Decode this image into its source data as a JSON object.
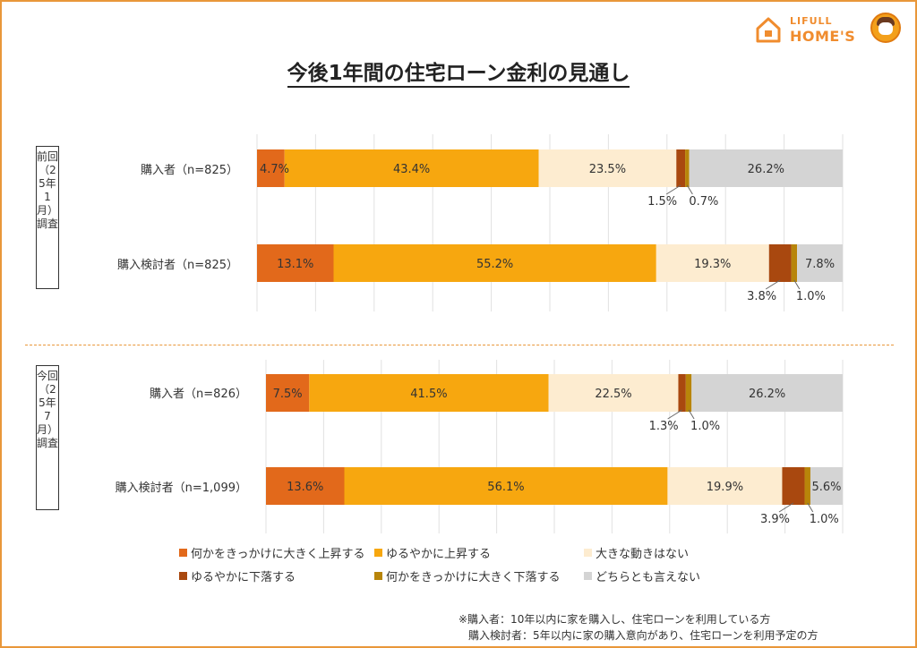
{
  "logo": {
    "line1": "LIFULL",
    "line2": "HOME'S"
  },
  "title": "今後1年間の住宅ローン金利の見通し",
  "surveys": {
    "previous": "前回（25年1月）調査",
    "current": "今回（25年7月）調査"
  },
  "colors": {
    "big_rise": "#e2691b",
    "slow_rise": "#f7a70f",
    "no_change": "#fdecd0",
    "slow_fall": "#a9480f",
    "big_fall": "#b8850a",
    "undecided": "#d4d4d4",
    "accent": "#e9973a"
  },
  "legend": [
    {
      "label": "何かをきっかけに大きく上昇する",
      "color": "#e2691b"
    },
    {
      "label": "ゆるやかに上昇する",
      "color": "#f7a70f"
    },
    {
      "label": "大きな動きはない",
      "color": "#fdecd0"
    },
    {
      "label": "ゆるやかに下落する",
      "color": "#a9480f"
    },
    {
      "label": "何かをきっかけに大きく下落する",
      "color": "#b8850a"
    },
    {
      "label": "どちらとも言えない",
      "color": "#d4d4d4"
    }
  ],
  "notes": {
    "line1": "※購入者：10年以内に家を購入し、住宅ローンを利用している方",
    "line2": "購入検討者：5年以内に家の購入意向があり、住宅ローンを利用予定の方"
  },
  "chart_data": {
    "type": "bar",
    "orientation": "horizontal",
    "stacked": true,
    "normalized_100": true,
    "title": "今後1年間の住宅ローン金利の見通し",
    "categories": [
      "購入者（n=825）",
      "購入検討者（n=825）",
      "購入者（n=826）",
      "購入検討者（n=1,099）"
    ],
    "groups": [
      "前回（25年1月）調査",
      "前回（25年1月）調査",
      "今回（25年7月）調査",
      "今回（25年7月）調査"
    ],
    "series": [
      {
        "name": "何かをきっかけに大きく上昇する",
        "color": "#e2691b",
        "values": [
          4.7,
          13.1,
          7.5,
          13.6
        ],
        "labels": [
          "4.7%",
          "13.1%",
          "7.5%",
          "13.6%"
        ]
      },
      {
        "name": "ゆるやかに上昇する",
        "color": "#f7a70f",
        "values": [
          43.4,
          55.2,
          41.5,
          56.1
        ],
        "labels": [
          "43.4%",
          "55.2%",
          "41.5%",
          "56.1%"
        ]
      },
      {
        "name": "大きな動きはない",
        "color": "#fdecd0",
        "values": [
          23.5,
          19.3,
          22.5,
          19.9
        ],
        "labels": [
          "23.5%",
          "19.3%",
          "22.5%",
          "19.9%"
        ]
      },
      {
        "name": "ゆるやかに下落する",
        "color": "#a9480f",
        "values": [
          1.5,
          3.8,
          1.3,
          3.9
        ],
        "labels": [
          "1.5%",
          "3.8%",
          "1.3%",
          "3.9%"
        ]
      },
      {
        "name": "何かをきっかけに大きく下落する",
        "color": "#b8850a",
        "values": [
          0.7,
          1.0,
          1.0,
          1.0
        ],
        "labels": [
          "0.7%",
          "1.0%",
          "1.0%",
          "1.0%"
        ]
      },
      {
        "name": "どちらとも言えない",
        "color": "#d4d4d4",
        "values": [
          26.2,
          7.8,
          26.2,
          5.6
        ],
        "labels": [
          "26.2%",
          "7.8%",
          "26.2%",
          "5.6%"
        ]
      }
    ],
    "xlim": [
      0,
      100
    ],
    "grid": true,
    "legend_position": "bottom"
  }
}
